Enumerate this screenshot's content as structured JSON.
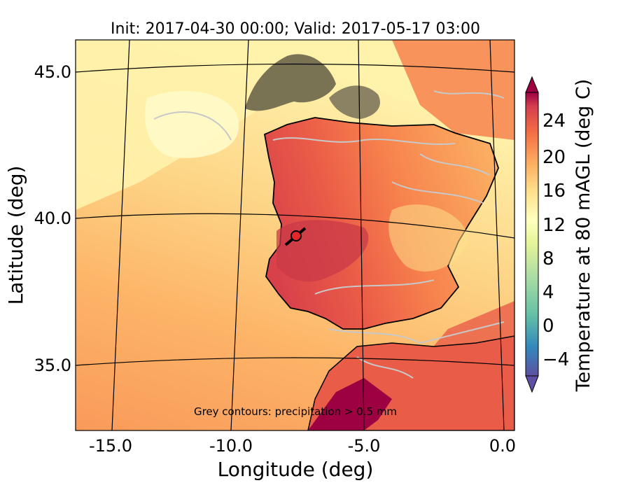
{
  "title": "Init: 2017-04-30 00:00; Valid: 2017-05-17 03:00",
  "xlabel": "Longitude (deg)",
  "ylabel": "Latitude (deg)",
  "x_ticks": [
    "-15.0",
    "-10.0",
    "-5.0",
    "0.0"
  ],
  "y_ticks": [
    "45.0",
    "40.0",
    "35.0"
  ],
  "annotation": "Grey contours: precipitation > 0.5 mm",
  "colorbar": {
    "label": "Temperature at 80 mAGL (deg C)",
    "min": -6,
    "max": 28,
    "ticks": [
      "−4",
      "0",
      "4",
      "8",
      "12",
      "16",
      "20",
      "24"
    ],
    "colormap": "Spectral_r",
    "extend": "both"
  },
  "marker": {
    "lon": -7.6,
    "lat": 39.4,
    "color": "#e8252a"
  },
  "colors": {
    "sea_warm": "#fdb568",
    "sea_mid": "#fdd587",
    "sea_cool": "#fff2ab",
    "land_hot": "#d8404a",
    "land_warm": "#f7834d",
    "terrain_dark": "#7a7353",
    "precip_contour": "#c8c8c8",
    "coastline": "#000000"
  }
}
